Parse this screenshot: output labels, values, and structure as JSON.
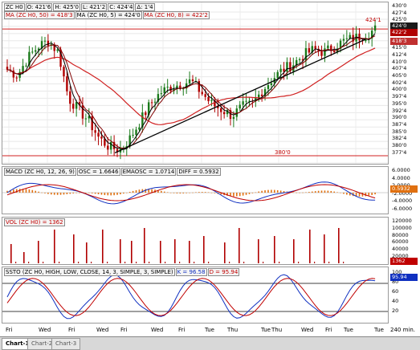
{
  "price_panel": {
    "header": [
      "ZC H0",
      "O: 421'6",
      "H: 425'0",
      "L: 421'2",
      "C: 424'4",
      "Δ: 1'4"
    ],
    "ma_labels": [
      "MA (ZC H0, 50) = 418'3",
      "MA (ZC H0, 5) = 424'0",
      "MA (ZC H0, 8) = 422'2"
    ],
    "level_high_label": "424'1",
    "level_low_label": "380'0",
    "y_ticks": [
      "430'0",
      "427'4",
      "425'0",
      "422'4",
      "420'0",
      "417'4",
      "415'0",
      "412'4",
      "410'0",
      "407'4",
      "405'0",
      "402'4",
      "400'0",
      "397'4",
      "395'0",
      "392'4",
      "390'0",
      "387'4",
      "385'0",
      "382'4",
      "380'0",
      "377'4"
    ],
    "price_tags": [
      {
        "text": "424'0",
        "color": "#1a1a1a"
      },
      {
        "text": "422'2",
        "color": "#b00000"
      },
      {
        "text": "418'3",
        "color": "#c03030"
      }
    ]
  },
  "macd_panel": {
    "header": "MACD (ZC H0, 12, 26, 9)",
    "osc": "OSC = 1.6646",
    "ema": "EMAOSC = 1.0714",
    "diff": "DIFF = 0.5932",
    "y_ticks": [
      "6.0000",
      "4.0000",
      "2.0000",
      "-2.0000",
      "-4.0000",
      "-6.0000"
    ],
    "tag": "0.5932",
    "tag_color": "#e07010"
  },
  "vol_panel": {
    "header": "VOL (ZC H0) = 1362",
    "y_ticks": [
      "120000",
      "100000",
      "80000",
      "60000",
      "40000",
      "20000"
    ],
    "tag": "1362",
    "tag_color": "#c00000"
  },
  "ssto_panel": {
    "header": "SSTO (ZC H0, HIGH, LOW, CLOSE, 14, 3, SIMPLE, 3, SIMPLE)",
    "k": "K = 96.58",
    "d": "D = 95.94",
    "y_ticks": [
      "100",
      "80",
      "60",
      "40",
      "20"
    ],
    "tag": "95.94",
    "tag_color": "#1030c0"
  },
  "x_axis": {
    "labels": [
      "Fri",
      "Wed",
      "Fri",
      "Wed",
      "Fri",
      "Wed",
      "Fri",
      "Tue",
      "Thu",
      "Tue",
      "Thu",
      "Wed",
      "Fri",
      "Tue",
      "Tue"
    ],
    "interval": "240 min."
  },
  "tabs": [
    "Chart-1",
    "Chart-2",
    "Chart-3"
  ],
  "colors": {
    "up": "#1a7a1a",
    "down": "#b00000",
    "ma50": "#d02020",
    "ma_fast": "#000000",
    "trend": "#000000",
    "level": "#d02020"
  },
  "chart_data": {
    "type": "candlestick",
    "symbol": "ZC H0",
    "price_range": [
      377.5,
      430
    ],
    "close_path": [
      410,
      408,
      414,
      418,
      420,
      416,
      400,
      396,
      392,
      386,
      383,
      382,
      386,
      392,
      398,
      402,
      404,
      405,
      406,
      402,
      398,
      396,
      394,
      397,
      398,
      403,
      407,
      410,
      412,
      415,
      417,
      416,
      418,
      420,
      421,
      422,
      424
    ],
    "horizontal_levels": [
      424.1,
      380.0
    ]
  }
}
